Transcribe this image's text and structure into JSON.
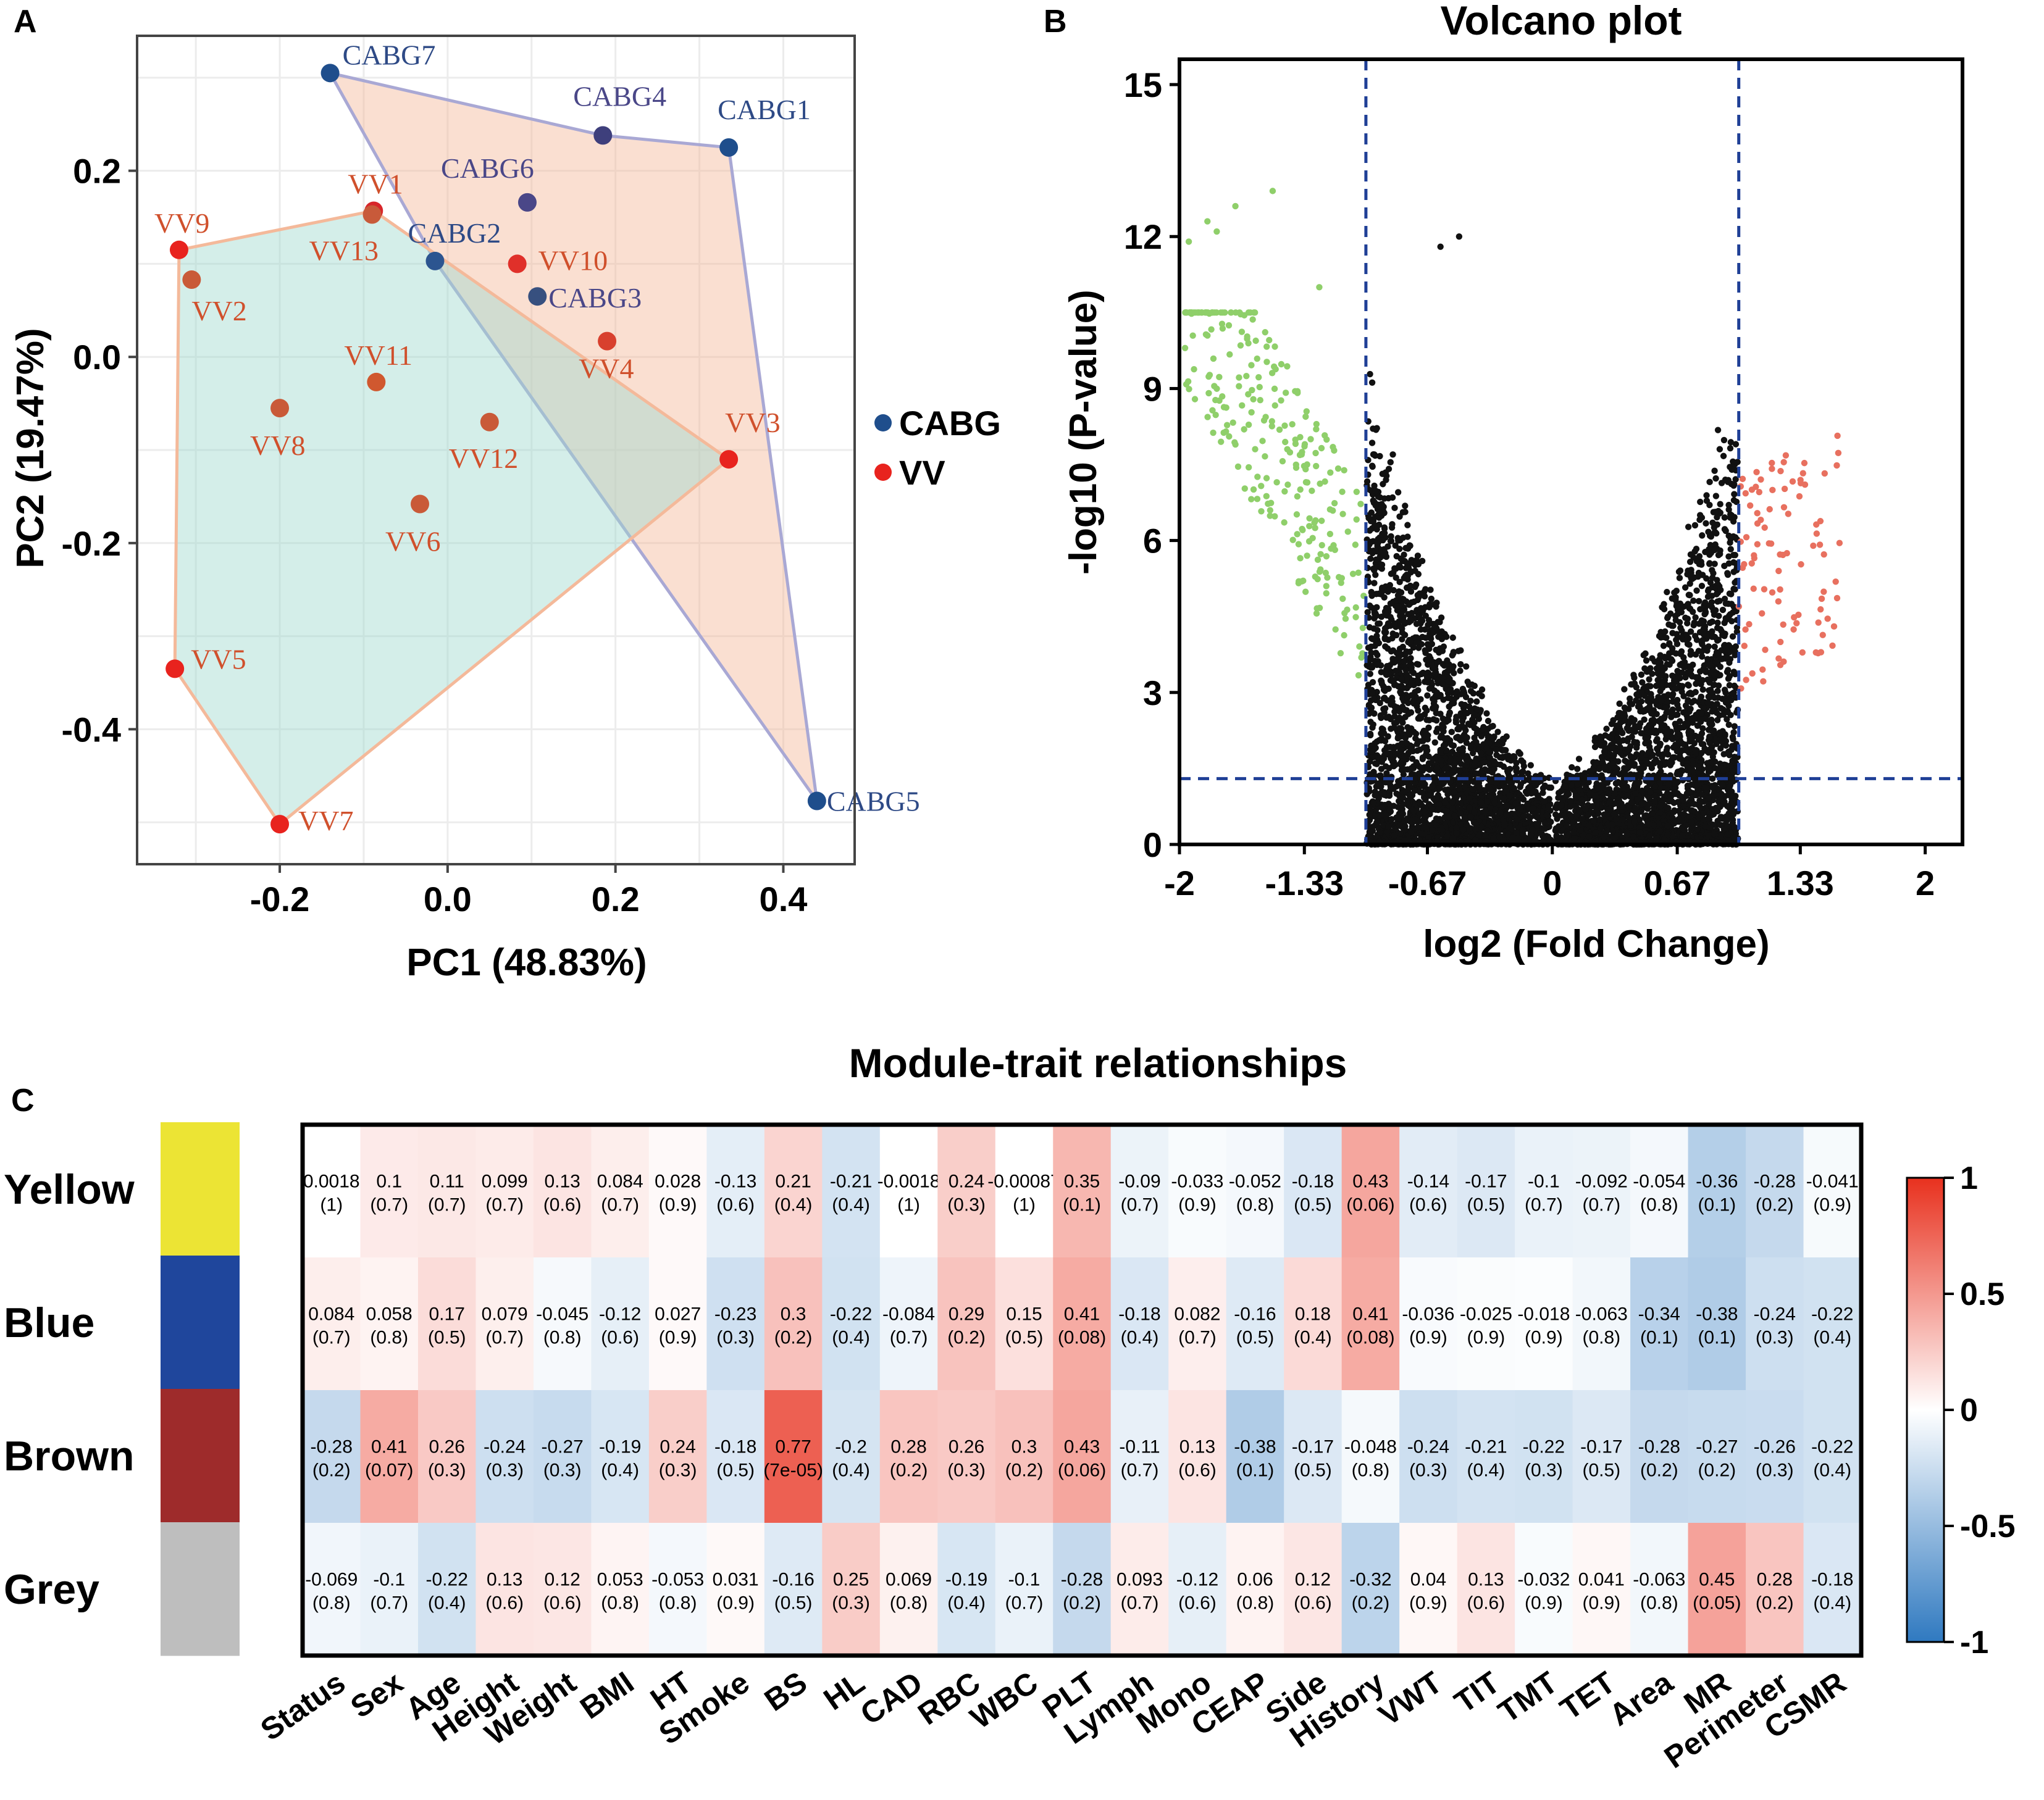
{
  "panels": {
    "a_letter": "A",
    "b_letter": "B",
    "c_letter": "C"
  },
  "colors": {
    "cabg": "#1f4e8c",
    "vv": "#e8231e",
    "cabg_hull": "#a9a8d4",
    "vv_hull": "#f4b99a",
    "up": "#e8705f",
    "down": "#8fcf6a",
    "ns": "#111111",
    "threshold": "#1f3f96"
  },
  "chart_data": [
    {
      "type": "scatter",
      "title": "",
      "xlabel": "PC1 (48.83%)",
      "ylabel": "PC2 (19.47%)",
      "xlim": [
        -0.37,
        0.485
      ],
      "ylim": [
        -0.545,
        0.345
      ],
      "xticks": [
        -0.2,
        0.0,
        0.2,
        0.4
      ],
      "xtick_labels": [
        "-0.2",
        "0.0",
        "0.2",
        "0.4"
      ],
      "yticks": [
        0.2,
        0.0,
        -0.2,
        -0.4
      ],
      "ytick_labels": [
        "0.2",
        "0.0",
        "-0.2",
        "-0.4"
      ],
      "grid": true,
      "legend": {
        "position": "right",
        "entries": [
          {
            "label": "CABG",
            "color": "#1f4e8c"
          },
          {
            "label": "VV",
            "color": "#e8231e"
          }
        ]
      },
      "series": [
        {
          "name": "CABG",
          "points": [
            {
              "label": "CABG7",
              "x": -0.14,
              "y": 0.305,
              "color": "#1f4e8c"
            },
            {
              "label": "CABG4",
              "x": 0.185,
              "y": 0.238,
              "color": "#3e3f7c"
            },
            {
              "label": "CABG1",
              "x": 0.335,
              "y": 0.225,
              "color": "#1f4e8c"
            },
            {
              "label": "CABG6",
              "x": 0.095,
              "y": 0.166,
              "color": "#4a4788"
            },
            {
              "label": "CABG2",
              "x": -0.015,
              "y": 0.103,
              "color": "#2c5590"
            },
            {
              "label": "CABG3",
              "x": 0.107,
              "y": 0.065,
              "color": "#37507f"
            },
            {
              "label": "CABG5",
              "x": 0.44,
              "y": -0.477,
              "color": "#1f4e8c"
            }
          ],
          "hull": [
            "CABG7",
            "CABG4",
            "CABG1",
            "CABG5",
            "CABG2"
          ]
        },
        {
          "name": "VV",
          "points": [
            {
              "label": "VV1",
              "x": -0.088,
              "y": 0.157,
              "color": "#d8262a"
            },
            {
              "label": "VV13",
              "x": -0.09,
              "y": 0.153,
              "color": "#c85a3a"
            },
            {
              "label": "VV9",
              "x": -0.32,
              "y": 0.115,
              "color": "#e8231e"
            },
            {
              "label": "VV2",
              "x": -0.305,
              "y": 0.083,
              "color": "#c95a38"
            },
            {
              "label": "VV10",
              "x": 0.083,
              "y": 0.1,
              "color": "#e0302a"
            },
            {
              "label": "VV4",
              "x": 0.19,
              "y": 0.017,
              "color": "#d8402e"
            },
            {
              "label": "VV11",
              "x": -0.085,
              "y": -0.027,
              "color": "#d0582f"
            },
            {
              "label": "VV8",
              "x": -0.2,
              "y": -0.055,
              "color": "#c95a38"
            },
            {
              "label": "VV12",
              "x": 0.05,
              "y": -0.07,
              "color": "#c95a38"
            },
            {
              "label": "VV3",
              "x": 0.335,
              "y": -0.11,
              "color": "#e8231e"
            },
            {
              "label": "VV6",
              "x": -0.033,
              "y": -0.158,
              "color": "#c95a38"
            },
            {
              "label": "VV5",
              "x": -0.325,
              "y": -0.335,
              "color": "#e8231e"
            },
            {
              "label": "VV7",
              "x": -0.2,
              "y": -0.502,
              "color": "#e8231e"
            }
          ],
          "hull": [
            "VV9",
            "VV1",
            "VV3",
            "VV7",
            "VV5"
          ]
        }
      ]
    },
    {
      "type": "scatter",
      "title": "Volcano plot",
      "xlabel": "log2 (Fold Change)",
      "ylabel": "-log10 (P-value)",
      "xlim": [
        -2,
        2.2
      ],
      "ylim": [
        0,
        15.5
      ],
      "xticks": [
        -2,
        -1.33,
        -0.67,
        0,
        0.67,
        1.33,
        2
      ],
      "xtick_labels": [
        "-2",
        "-1.33",
        "-0.67",
        "0",
        "0.67",
        "1.33",
        "2"
      ],
      "yticks": [
        0,
        3,
        6,
        9,
        12,
        15
      ],
      "ytick_labels": [
        "0",
        "3",
        "6",
        "9",
        "12",
        "15"
      ],
      "grid": false,
      "thresholds": {
        "x": [
          -1,
          1
        ],
        "y": 1.3
      },
      "series": [
        {
          "name": "down",
          "color": "#8fcf6a",
          "approx_count": 260
        },
        {
          "name": "ns",
          "color": "#111111",
          "approx_count": 5200
        },
        {
          "name": "up",
          "color": "#e8705f",
          "approx_count": 95
        }
      ],
      "highlight_points": [
        {
          "x": -1.95,
          "y": 11.9
        },
        {
          "x": -1.85,
          "y": 12.3
        },
        {
          "x": -1.7,
          "y": 12.6
        },
        {
          "x": -1.5,
          "y": 12.9
        },
        {
          "x": -1.97,
          "y": 9.8
        },
        {
          "x": -1.8,
          "y": 12.1
        },
        {
          "x": -0.6,
          "y": 11.8
        },
        {
          "x": -0.5,
          "y": 12.0
        },
        {
          "x": -1.25,
          "y": 11.0
        }
      ]
    },
    {
      "type": "heatmap",
      "title": "Module-trait relationships",
      "rows": [
        "Yellow",
        "Blue",
        "Brown",
        "Grey"
      ],
      "row_colors": [
        "#ece434",
        "#1f469c",
        "#9e2b2b",
        "#bebebe"
      ],
      "columns": [
        "Status",
        "Sex",
        "Age",
        "Height",
        "Weight",
        "BMI",
        "HT",
        "Smoke",
        "BS",
        "HL",
        "CAD",
        "RBC",
        "WBC",
        "PLT",
        "Lymph",
        "Mono",
        "CEAP",
        "Side",
        "History",
        "VWT",
        "TIT",
        "TMT",
        "TET",
        "Area",
        "MR",
        "Perimeter",
        "CSMR"
      ],
      "values": [
        [
          0.0018,
          0.1,
          0.11,
          0.099,
          0.13,
          0.084,
          0.028,
          -0.13,
          0.21,
          -0.21,
          -0.0018,
          0.24,
          -0.00087,
          0.35,
          -0.09,
          -0.033,
          -0.052,
          -0.18,
          0.43,
          -0.14,
          -0.17,
          -0.1,
          -0.092,
          -0.054,
          -0.36,
          -0.28,
          -0.041
        ],
        [
          0.084,
          0.058,
          0.17,
          0.079,
          -0.045,
          -0.12,
          0.027,
          -0.23,
          0.3,
          -0.22,
          -0.084,
          0.29,
          0.15,
          0.41,
          -0.18,
          0.082,
          -0.16,
          0.18,
          0.41,
          -0.036,
          -0.025,
          -0.018,
          -0.063,
          -0.34,
          -0.38,
          -0.24,
          -0.22
        ],
        [
          -0.28,
          0.41,
          0.26,
          -0.24,
          -0.27,
          -0.19,
          0.24,
          -0.18,
          0.77,
          -0.2,
          0.28,
          0.26,
          0.3,
          0.43,
          -0.11,
          0.13,
          -0.38,
          -0.17,
          -0.048,
          -0.24,
          -0.21,
          -0.22,
          -0.17,
          -0.28,
          -0.27,
          -0.26,
          -0.22
        ],
        [
          -0.069,
          -0.1,
          -0.22,
          0.13,
          0.12,
          0.053,
          -0.053,
          0.031,
          -0.16,
          0.25,
          0.069,
          -0.19,
          -0.1,
          -0.28,
          0.093,
          -0.12,
          0.06,
          0.12,
          -0.32,
          0.04,
          0.13,
          -0.032,
          0.041,
          -0.063,
          0.45,
          0.28,
          -0.18
        ]
      ],
      "value_labels": [
        [
          "0.0018",
          "0.1",
          "0.11",
          "0.099",
          "0.13",
          "0.084",
          "0.028",
          "-0.13",
          "0.21",
          "-0.21",
          "-0.0018",
          "0.24",
          "-0.00087",
          "0.35",
          "-0.09",
          "-0.033",
          "-0.052",
          "-0.18",
          "0.43",
          "-0.14",
          "-0.17",
          "-0.1",
          "-0.092",
          "-0.054",
          "-0.36",
          "-0.28",
          "-0.041"
        ],
        [
          "0.084",
          "0.058",
          "0.17",
          "0.079",
          "-0.045",
          "-0.12",
          "0.027",
          "-0.23",
          "0.3",
          "-0.22",
          "-0.084",
          "0.29",
          "0.15",
          "0.41",
          "-0.18",
          "0.082",
          "-0.16",
          "0.18",
          "0.41",
          "-0.036",
          "-0.025",
          "-0.018",
          "-0.063",
          "-0.34",
          "-0.38",
          "-0.24",
          "-0.22"
        ],
        [
          "-0.28",
          "0.41",
          "0.26",
          "-0.24",
          "-0.27",
          "-0.19",
          "0.24",
          "-0.18",
          "0.77",
          "-0.2",
          "0.28",
          "0.26",
          "0.3",
          "0.43",
          "-0.11",
          "0.13",
          "-0.38",
          "-0.17",
          "-0.048",
          "-0.24",
          "-0.21",
          "-0.22",
          "-0.17",
          "-0.28",
          "-0.27",
          "-0.26",
          "-0.22"
        ],
        [
          "-0.069",
          "-0.1",
          "-0.22",
          "0.13",
          "0.12",
          "0.053",
          "-0.053",
          "0.031",
          "-0.16",
          "0.25",
          "0.069",
          "-0.19",
          "-0.1",
          "-0.28",
          "0.093",
          "-0.12",
          "0.06",
          "0.12",
          "-0.32",
          "0.04",
          "0.13",
          "-0.032",
          "0.041",
          "-0.063",
          "0.45",
          "0.28",
          "-0.18"
        ]
      ],
      "pvalue_labels": [
        [
          "(1)",
          "(0.7)",
          "(0.7)",
          "(0.7)",
          "(0.6)",
          "(0.7)",
          "(0.9)",
          "(0.6)",
          "(0.4)",
          "(0.4)",
          "(1)",
          "(0.3)",
          "(1)",
          "(0.1)",
          "(0.7)",
          "(0.9)",
          "(0.8)",
          "(0.5)",
          "(0.06)",
          "(0.6)",
          "(0.5)",
          "(0.7)",
          "(0.7)",
          "(0.8)",
          "(0.1)",
          "(0.2)",
          "(0.9)"
        ],
        [
          "(0.7)",
          "(0.8)",
          "(0.5)",
          "(0.7)",
          "(0.8)",
          "(0.6)",
          "(0.9)",
          "(0.3)",
          "(0.2)",
          "(0.4)",
          "(0.7)",
          "(0.2)",
          "(0.5)",
          "(0.08)",
          "(0.4)",
          "(0.7)",
          "(0.5)",
          "(0.4)",
          "(0.08)",
          "(0.9)",
          "(0.9)",
          "(0.9)",
          "(0.8)",
          "(0.1)",
          "(0.1)",
          "(0.3)",
          "(0.4)"
        ],
        [
          "(0.2)",
          "(0.07)",
          "(0.3)",
          "(0.3)",
          "(0.3)",
          "(0.4)",
          "(0.3)",
          "(0.5)",
          "(7e-05)",
          "(0.4)",
          "(0.2)",
          "(0.3)",
          "(0.2)",
          "(0.06)",
          "(0.7)",
          "(0.6)",
          "(0.1)",
          "(0.5)",
          "(0.8)",
          "(0.3)",
          "(0.4)",
          "(0.3)",
          "(0.5)",
          "(0.2)",
          "(0.2)",
          "(0.3)",
          "(0.4)"
        ],
        [
          "(0.8)",
          "(0.7)",
          "(0.4)",
          "(0.6)",
          "(0.6)",
          "(0.8)",
          "(0.8)",
          "(0.9)",
          "(0.5)",
          "(0.3)",
          "(0.8)",
          "(0.4)",
          "(0.7)",
          "(0.2)",
          "(0.7)",
          "(0.6)",
          "(0.8)",
          "(0.6)",
          "(0.2)",
          "(0.9)",
          "(0.6)",
          "(0.9)",
          "(0.9)",
          "(0.8)",
          "(0.05)",
          "(0.2)",
          "(0.4)"
        ]
      ],
      "colorbar": {
        "range": [
          -1,
          1
        ],
        "ticks": [
          1,
          0.5,
          0,
          -0.5,
          -1
        ],
        "tick_labels": [
          "1",
          "0.5",
          "0",
          "-0.5",
          "-1"
        ],
        "low_color": "#2f79c0",
        "mid_color": "#ffffff",
        "high_color": "#e8311e"
      }
    }
  ]
}
